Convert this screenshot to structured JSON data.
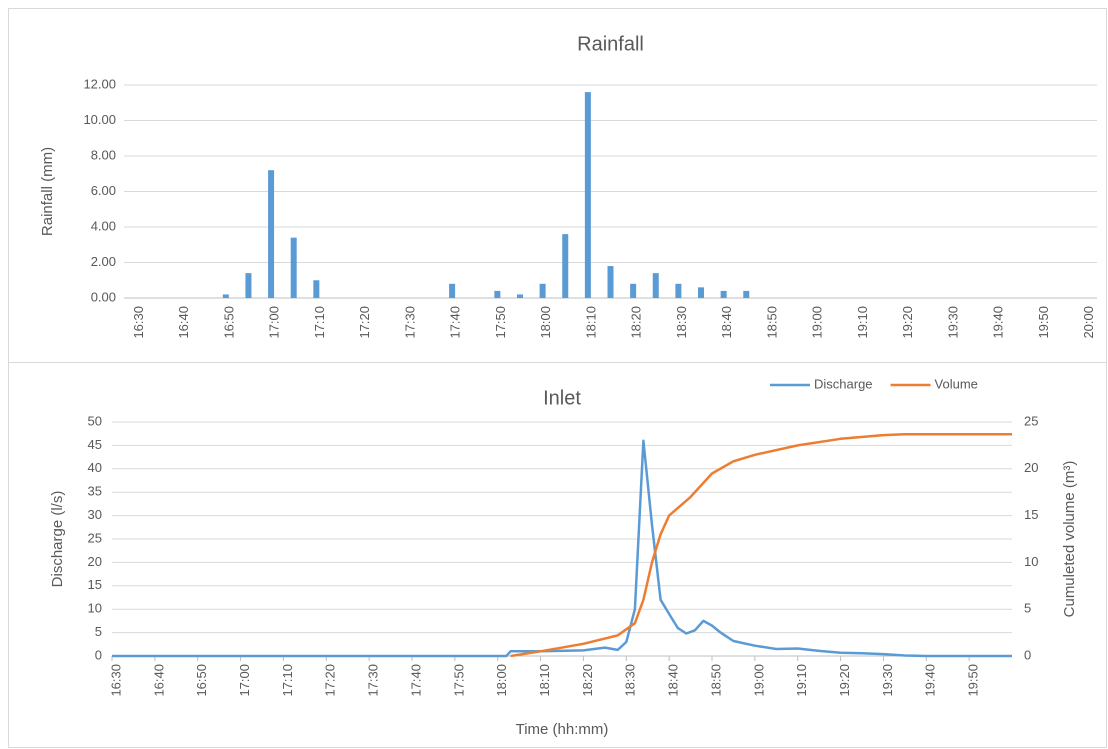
{
  "chart_data": [
    {
      "type": "bar",
      "title": "Rainfall",
      "ylabel": "Rainfall (mm)",
      "categories": [
        "16:30",
        null,
        "16:40",
        null,
        "16:50",
        null,
        "17:00",
        null,
        "17:10",
        null,
        "17:20",
        null,
        "17:30",
        null,
        "17:40",
        null,
        "17:50",
        null,
        "18:00",
        null,
        "18:10",
        null,
        "18:20",
        null,
        "18:30",
        null,
        "18:40",
        null,
        "18:50",
        null,
        "19:00",
        null,
        "19:10",
        null,
        "19:20",
        null,
        "19:30",
        null,
        "19:40",
        null,
        "19:50",
        null,
        "20:00"
      ],
      "values": [
        0,
        0,
        0,
        0,
        0.2,
        1.4,
        7.2,
        3.4,
        1.0,
        0,
        0,
        0,
        0,
        0,
        0.8,
        0,
        0.4,
        0.2,
        0.8,
        3.6,
        11.6,
        1.8,
        0.8,
        1.4,
        0.8,
        0.6,
        0.4,
        0.4,
        0,
        0,
        0,
        0,
        0,
        0,
        0,
        0,
        0,
        0,
        0,
        0,
        0,
        0,
        0
      ],
      "color": "#5b9bd5",
      "ylim": [
        0,
        12
      ],
      "yticks": [
        {
          "value": 0,
          "label": "0.00"
        },
        {
          "value": 2,
          "label": "2.00"
        },
        {
          "value": 4,
          "label": "4.00"
        },
        {
          "value": 6,
          "label": "6.00"
        },
        {
          "value": 8,
          "label": "8.00"
        },
        {
          "value": 10,
          "label": "10.00"
        },
        {
          "value": 12,
          "label": "12.00"
        }
      ],
      "grid": true
    },
    {
      "type": "line",
      "title": "Inlet",
      "xlabel": "Time (hh:mm)",
      "ylabel": "Discharge (l/s)",
      "y2label": "Cumuleted volume (m³)",
      "xlim": [
        "16:30",
        "20:00"
      ],
      "xticks": [
        "16:30",
        "16:40",
        "16:50",
        "17:00",
        "17:10",
        "17:20",
        "17:30",
        "17:40",
        "17:50",
        "18:00",
        "18:10",
        "18:20",
        "18:30",
        "18:40",
        "18:50",
        "19:00",
        "19:10",
        "19:20",
        "19:30",
        "19:40",
        "19:50"
      ],
      "ylim": [
        0,
        50
      ],
      "yticks": [
        0,
        5,
        10,
        15,
        20,
        25,
        30,
        35,
        40,
        45,
        50
      ],
      "y2lim": [
        0,
        25
      ],
      "y2ticks": [
        0,
        5,
        10,
        15,
        20,
        25
      ],
      "grid": true,
      "legend": "top-right",
      "series": [
        {
          "name": "Discharge",
          "color": "#5b9bd5",
          "x": [
            "16:30",
            "18:02",
            "18:03",
            "18:10",
            "18:20",
            "18:25",
            "18:28",
            "18:30",
            "18:32",
            "18:34",
            "18:36",
            "18:38",
            "18:40",
            "18:42",
            "18:44",
            "18:46",
            "18:48",
            "18:50",
            "18:52",
            "18:55",
            "19:00",
            "19:05",
            "19:10",
            "19:15",
            "19:20",
            "19:25",
            "19:30",
            "19:35",
            "19:40",
            "20:00"
          ],
          "values": [
            0,
            0,
            1.0,
            1.0,
            1.2,
            1.8,
            1.3,
            3,
            10,
            46,
            28,
            12,
            9,
            6,
            4.8,
            5.5,
            7.5,
            6.5,
            5,
            3.2,
            2.2,
            1.5,
            1.6,
            1.1,
            0.7,
            0.6,
            0.4,
            0.1,
            0,
            0
          ]
        },
        {
          "name": "Volume",
          "color": "#ed7d31",
          "axis": "y2",
          "x": [
            "18:03",
            "18:10",
            "18:20",
            "18:28",
            "18:32",
            "18:34",
            "18:36",
            "18:38",
            "18:40",
            "18:45",
            "18:50",
            "18:55",
            "19:00",
            "19:10",
            "19:20",
            "19:30",
            "19:35",
            "20:00"
          ],
          "values": [
            0,
            0.5,
            1.3,
            2.2,
            3.5,
            6,
            10,
            13,
            15,
            17,
            19.5,
            20.8,
            21.5,
            22.5,
            23.2,
            23.6,
            23.7,
            23.7
          ]
        }
      ]
    }
  ]
}
